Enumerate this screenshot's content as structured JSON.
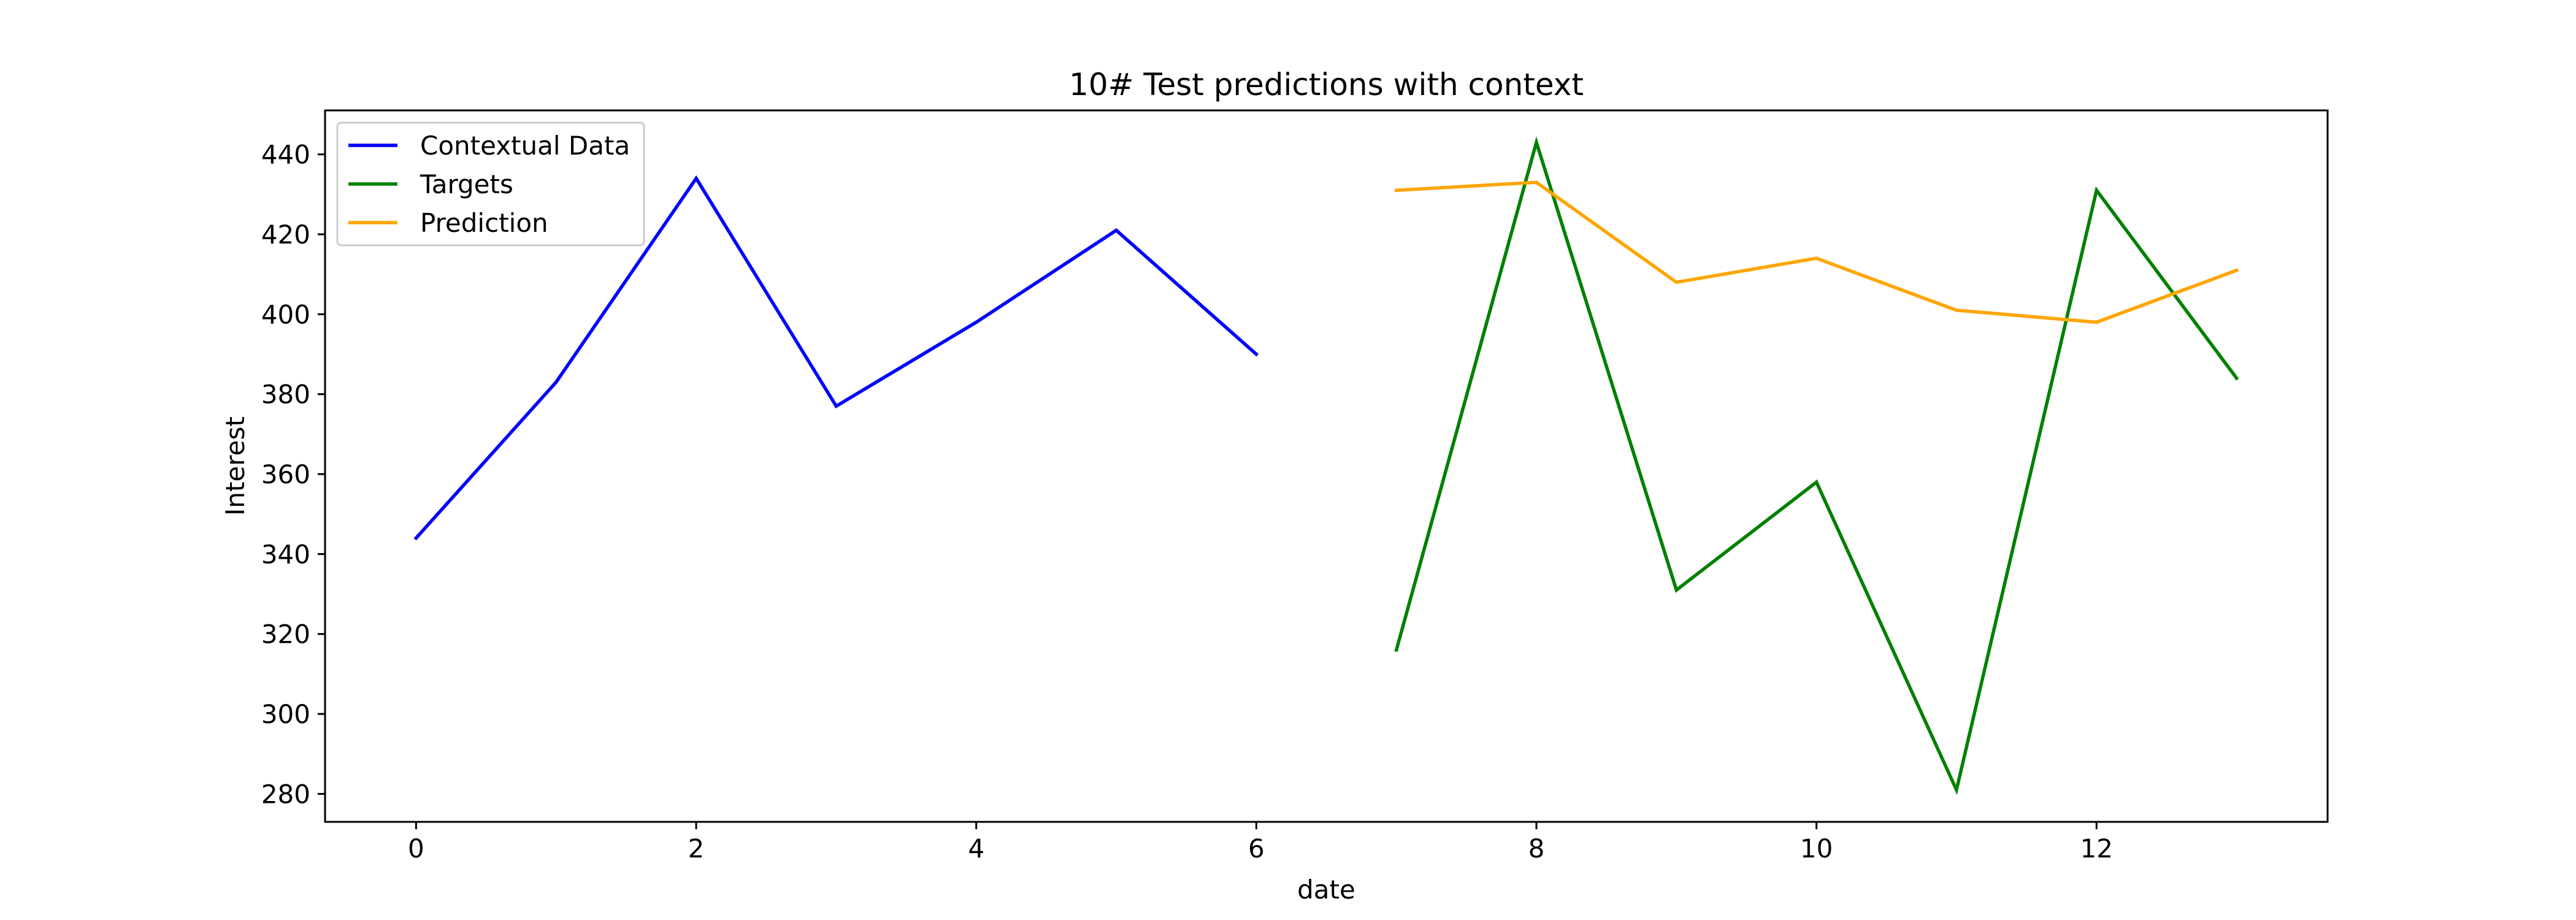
{
  "chart_data": {
    "type": "line",
    "title": "10# Test predictions with context",
    "xlabel": "date",
    "ylabel": "Interest",
    "xlim": [
      -0.65,
      13.65
    ],
    "ylim": [
      273,
      451
    ],
    "xticks": [
      0,
      2,
      4,
      6,
      8,
      10,
      12
    ],
    "yticks": [
      280,
      300,
      320,
      340,
      360,
      380,
      400,
      420,
      440
    ],
    "grid": false,
    "legend_position": "top-left",
    "series": [
      {
        "name": "Contextual Data",
        "color": "#0000ff",
        "x": [
          0,
          1,
          2,
          3,
          4,
          5,
          6
        ],
        "y": [
          344,
          383,
          434,
          377,
          398,
          421,
          390
        ]
      },
      {
        "name": "Targets",
        "color": "#008000",
        "x": [
          7,
          8,
          9,
          10,
          11,
          12,
          13
        ],
        "y": [
          316,
          443,
          331,
          358,
          281,
          431,
          384
        ]
      },
      {
        "name": "Prediction",
        "color": "#ffa500",
        "x": [
          7,
          8,
          9,
          10,
          11,
          12,
          13
        ],
        "y": [
          431,
          433,
          408,
          414,
          401,
          398,
          411
        ]
      }
    ]
  }
}
